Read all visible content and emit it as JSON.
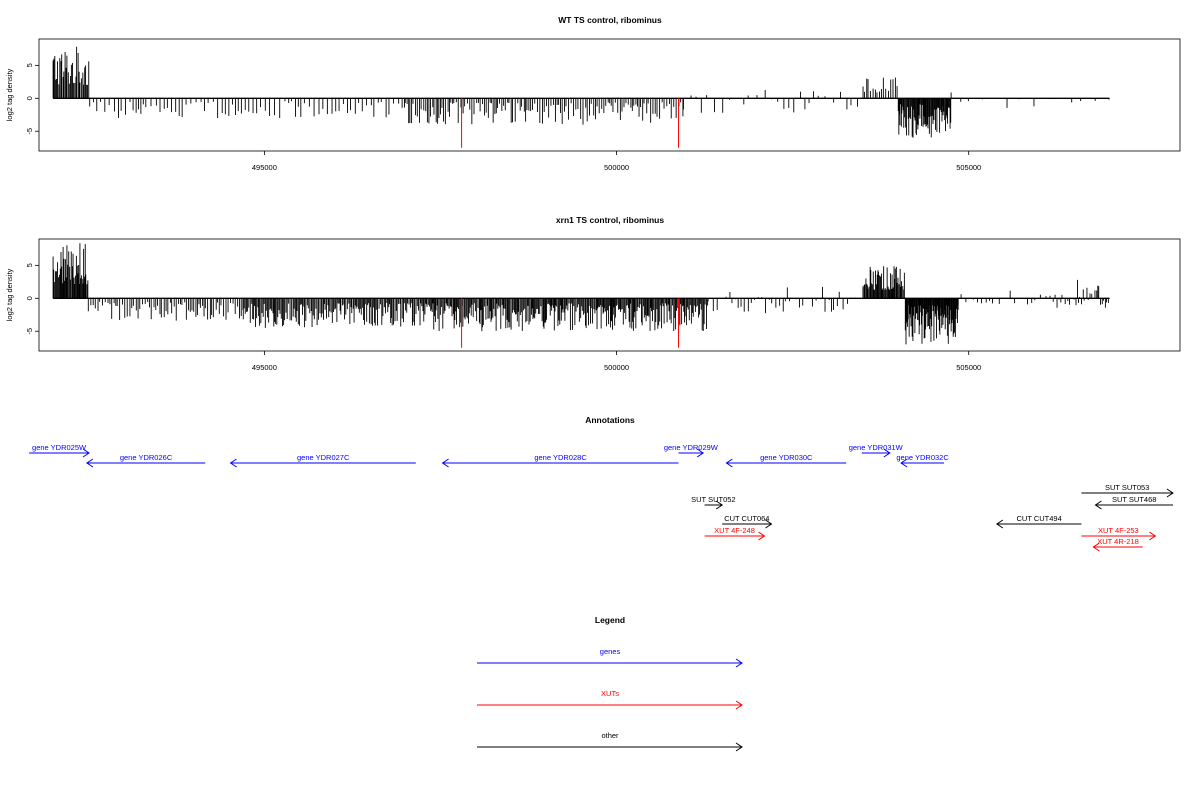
{
  "chart_data": [
    {
      "type": "bar",
      "title": "WT TS control, ribominus",
      "ylabel": "log2 tag density",
      "xlabel": "",
      "xlim": [
        491800,
        508000
      ],
      "ylim": [
        -8,
        9
      ],
      "yticks": [
        -5,
        0,
        5
      ],
      "ytick_labels": [
        "-5",
        "0",
        "5"
      ],
      "xticks": [
        495000,
        500000,
        505000
      ],
      "xtick_labels": [
        "495000",
        "500000",
        "505000"
      ],
      "baseline": 0,
      "data_start": 492000,
      "data_end": 507000,
      "grid": false,
      "red_lines": [
        {
          "x": 497800,
          "y": -7.5,
          "color": "#ff0000"
        },
        {
          "x": 500880,
          "y": -7.5,
          "color": "#ff0000"
        }
      ],
      "density_profile": [
        {
          "start": 492000,
          "end": 492520,
          "max": 8.0,
          "min": 0,
          "step": 15
        },
        {
          "start": 492520,
          "end": 497000,
          "max": 0,
          "min": -3.0,
          "step": 55
        },
        {
          "start": 497000,
          "end": 500950,
          "max": 0,
          "min": -4.0,
          "step": 28
        },
        {
          "start": 500950,
          "end": 503500,
          "max": 1.5,
          "min": -2.5,
          "step": 90
        },
        {
          "start": 503500,
          "end": 504000,
          "max": 3.5,
          "min": 0,
          "step": 30
        },
        {
          "start": 504000,
          "end": 504750,
          "max": 0,
          "min": -6.0,
          "step": 10
        },
        {
          "start": 504750,
          "end": 507000,
          "max": 2.0,
          "min": -1.5,
          "step": 160
        }
      ]
    },
    {
      "type": "bar",
      "title": "xrn1 TS control, ribominus",
      "ylabel": "log2 tag density",
      "xlabel": "",
      "xlim": [
        491800,
        508000
      ],
      "ylim": [
        -8,
        9
      ],
      "yticks": [
        -5,
        0,
        5
      ],
      "ytick_labels": [
        "-5",
        "0",
        "5"
      ],
      "xticks": [
        495000,
        500000,
        505000
      ],
      "xtick_labels": [
        "495000",
        "500000",
        "505000"
      ],
      "baseline": 0,
      "data_start": 492000,
      "data_end": 507000,
      "grid": false,
      "red_lines": [
        {
          "x": 497800,
          "y": -7.5,
          "color": "#ff0000"
        },
        {
          "x": 500880,
          "y": -7.5,
          "color": "#ff0000"
        }
      ],
      "density_profile": [
        {
          "start": 492000,
          "end": 492500,
          "max": 8.5,
          "min": 0,
          "step": 12
        },
        {
          "start": 492500,
          "end": 494700,
          "max": 0,
          "min": -3.5,
          "step": 30
        },
        {
          "start": 494700,
          "end": 497300,
          "max": 0,
          "min": -4.5,
          "step": 16
        },
        {
          "start": 497300,
          "end": 501300,
          "max": 0,
          "min": -5.0,
          "step": 14
        },
        {
          "start": 501300,
          "end": 503500,
          "max": 2.0,
          "min": -2.5,
          "step": 45
        },
        {
          "start": 503500,
          "end": 504100,
          "max": 5.0,
          "min": 0,
          "step": 12
        },
        {
          "start": 504100,
          "end": 504850,
          "max": 0,
          "min": -7.0,
          "step": 8
        },
        {
          "start": 504850,
          "end": 506200,
          "max": 2.0,
          "min": -1.0,
          "step": 60
        },
        {
          "start": 506200,
          "end": 507000,
          "max": 3.5,
          "min": -1.5,
          "step": 20
        }
      ]
    }
  ],
  "annotations": {
    "title": "Annotations",
    "features": [
      {
        "label": "gene YDR025W",
        "kind": "gene",
        "strand": "+",
        "start": 491660,
        "end": 492510,
        "row": 0
      },
      {
        "label": "gene YDR026C",
        "kind": "gene",
        "strand": "-",
        "start": 492480,
        "end": 494160,
        "row": 1
      },
      {
        "label": "gene YDR027C",
        "kind": "gene",
        "strand": "-",
        "start": 494520,
        "end": 497150,
        "row": 1
      },
      {
        "label": "gene YDR028C",
        "kind": "gene",
        "strand": "-",
        "start": 497530,
        "end": 500880,
        "row": 1
      },
      {
        "label": "gene YDR029W",
        "kind": "gene",
        "strand": "+",
        "start": 500880,
        "end": 501230,
        "row": 0
      },
      {
        "label": "gene YDR030C",
        "kind": "gene",
        "strand": "-",
        "start": 501560,
        "end": 503260,
        "row": 1
      },
      {
        "label": "gene YDR031W",
        "kind": "gene",
        "strand": "+",
        "start": 503480,
        "end": 503880,
        "row": 0
      },
      {
        "label": "gene YDR032C",
        "kind": "gene",
        "strand": "-",
        "start": 504040,
        "end": 504650,
        "row": 1
      },
      {
        "label": "SUT SUT052",
        "kind": "other",
        "strand": "+",
        "start": 501250,
        "end": 501500,
        "row": 3
      },
      {
        "label": "CUT CUT064",
        "kind": "other",
        "strand": "+",
        "start": 501500,
        "end": 502200,
        "row": 4
      },
      {
        "label": "XUT 4F-248",
        "kind": "XUT",
        "strand": "+",
        "start": 501250,
        "end": 502100,
        "row": 5
      },
      {
        "label": "CUT CUT494",
        "kind": "other",
        "strand": "-",
        "start": 505400,
        "end": 506600,
        "row": 4
      },
      {
        "label": "SUT SUT053",
        "kind": "other",
        "strand": "+",
        "start": 506600,
        "end": 507900,
        "row": 2
      },
      {
        "label": "SUT SUT468",
        "kind": "other",
        "strand": "-",
        "start": 506800,
        "end": 507900,
        "row": 3
      },
      {
        "label": "XUT 4F-253",
        "kind": "XUT",
        "strand": "+",
        "start": 506600,
        "end": 507650,
        "row": 5
      },
      {
        "label": "XUT 4R-218",
        "kind": "XUT",
        "strand": "-",
        "start": 506770,
        "end": 507470,
        "row": 6
      }
    ]
  },
  "legend": {
    "title": "Legend",
    "items": [
      {
        "label": "genes",
        "color": "#0000ff"
      },
      {
        "label": "XUTs",
        "color": "#ff0000"
      },
      {
        "label": "other",
        "color": "#000000"
      }
    ]
  },
  "colors": {
    "gene": "#0000ff",
    "XUT": "#ff0000",
    "other": "#000000",
    "marker": "#ff0000"
  }
}
